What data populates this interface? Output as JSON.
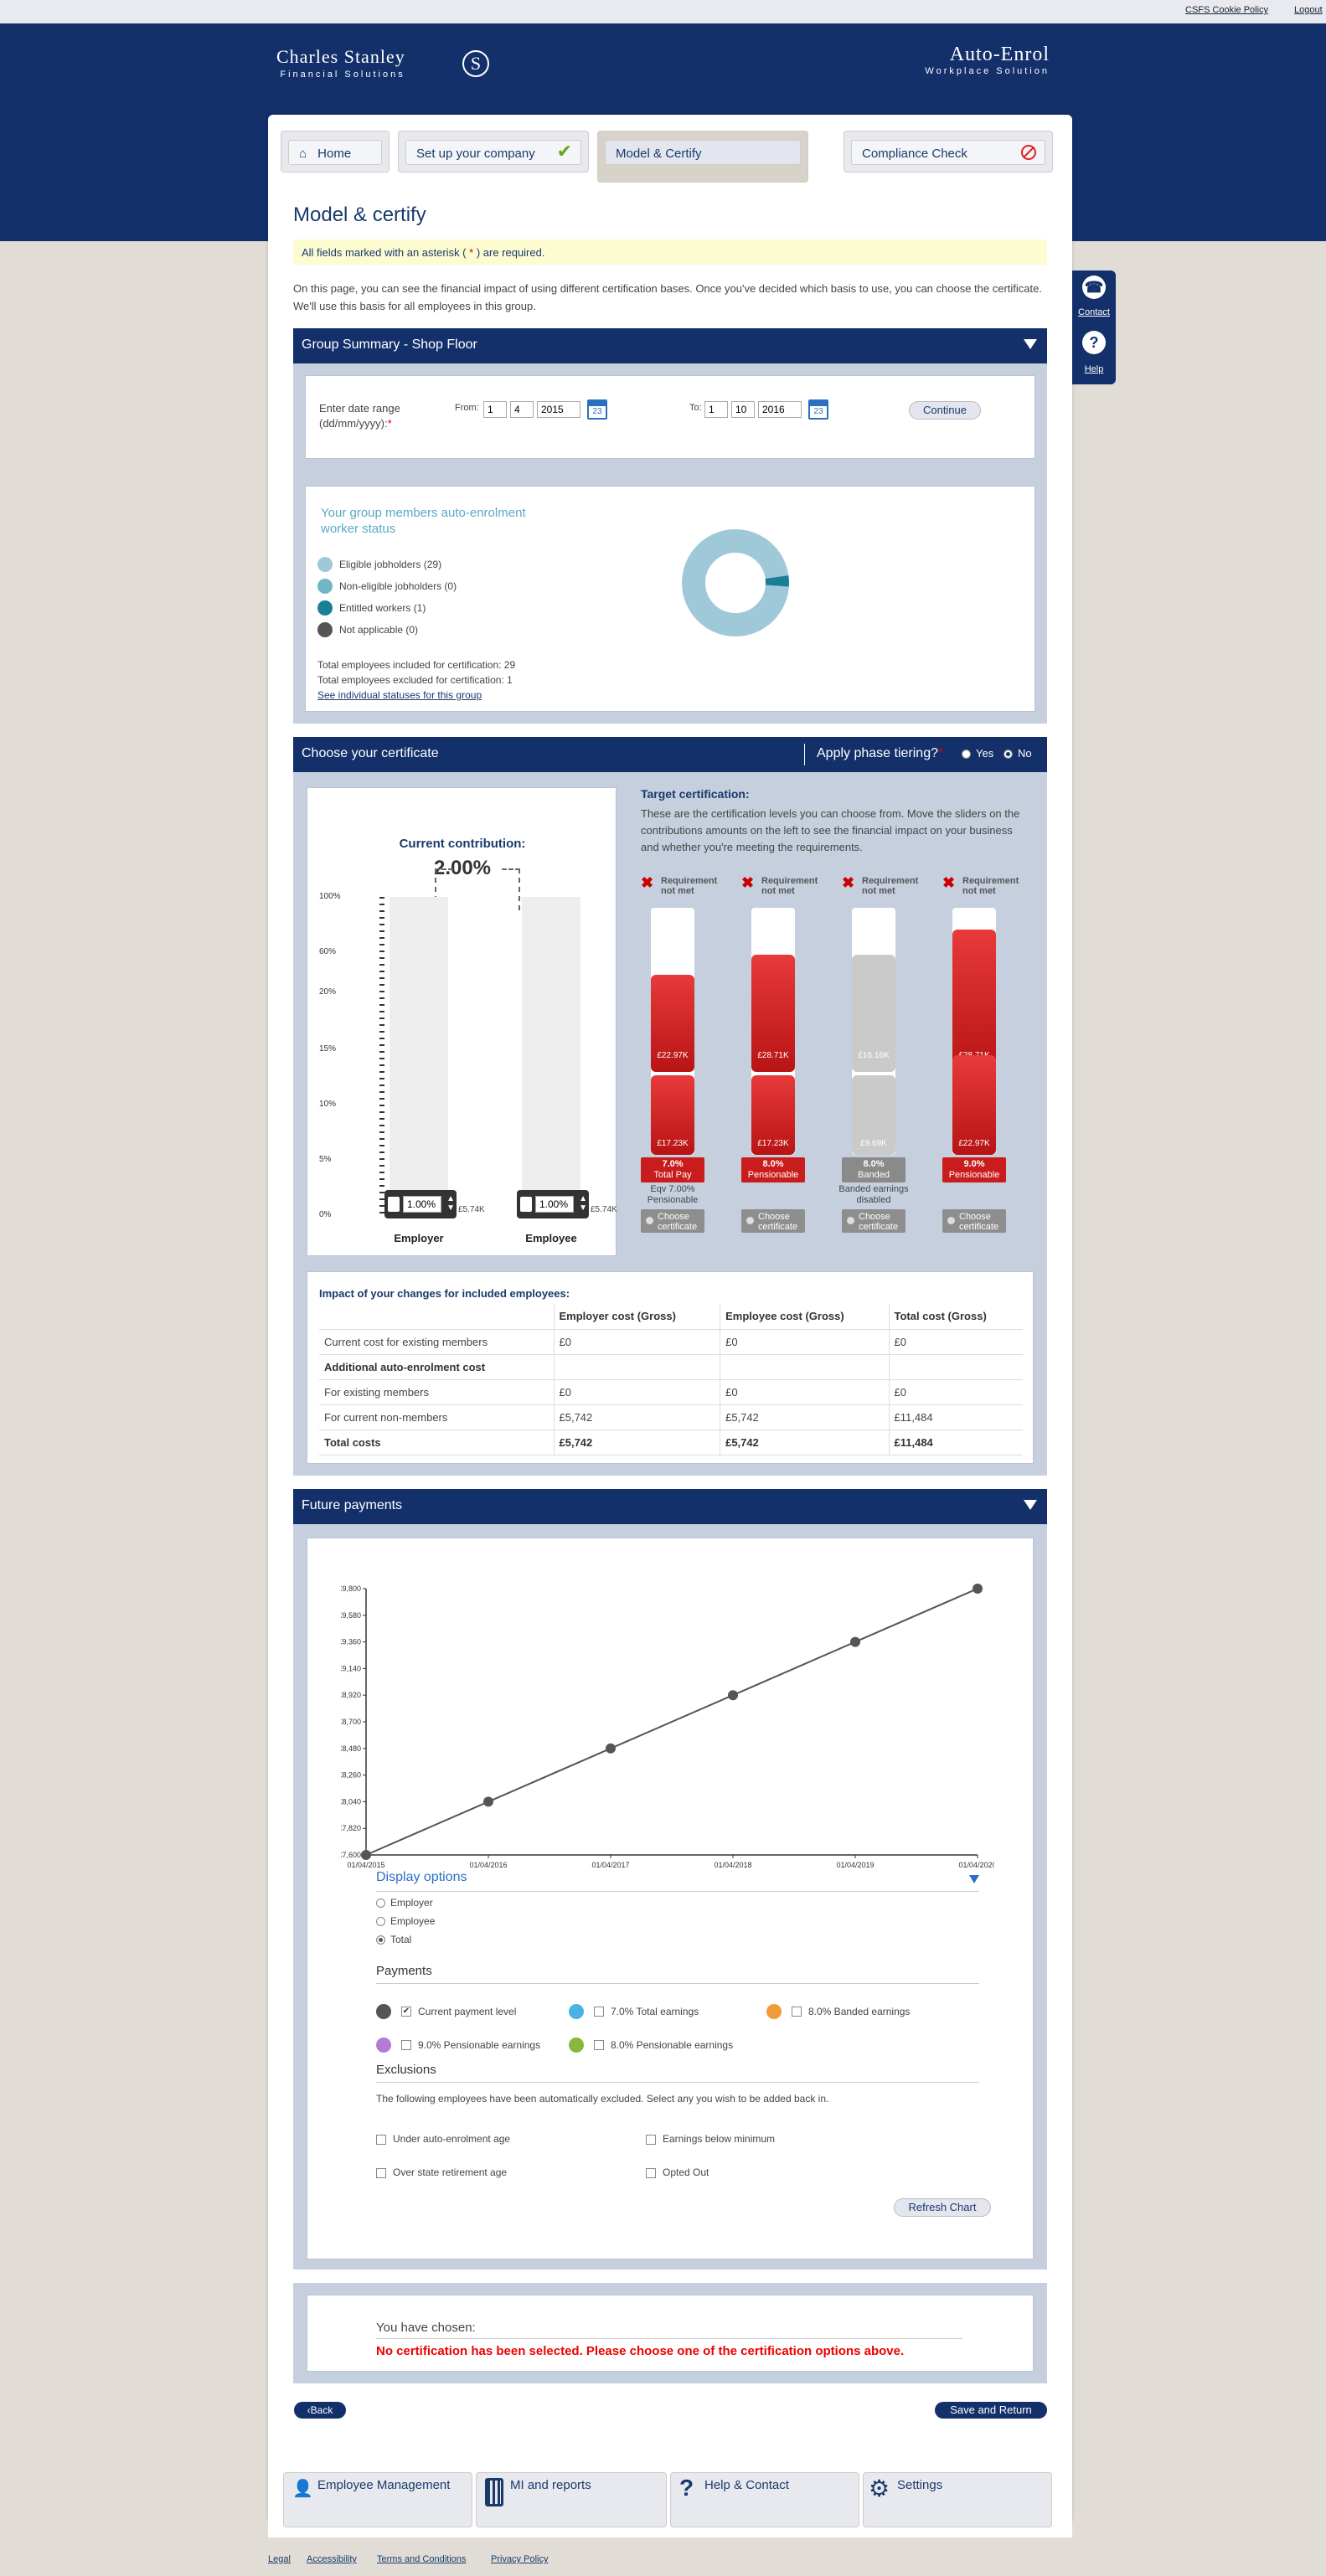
{
  "topbar": {
    "cookie": "CSFS Cookie Policy",
    "logout": "Logout"
  },
  "brand": {
    "left_line1": "Charles Stanley",
    "left_line2": "Financial Solutions",
    "left_mark": "S",
    "right_line1": "Auto-Enrol",
    "right_line2": "Workplace Solution"
  },
  "tabs": [
    {
      "label": "Home"
    },
    {
      "label": "Set up your company"
    },
    {
      "label": "Model & Certify"
    },
    {
      "label": "Compliance Check"
    }
  ],
  "page": {
    "title": "Model & certify",
    "required_note_pre": "All fields marked with an asterisk (",
    "required_note_ast": " * ",
    "required_note_post": ") are required.",
    "intro": "On this page, you can see the financial impact of using different certification bases. Once you've decided which basis to use, you can choose the certificate. We'll use this basis for all employees in this group."
  },
  "side": {
    "contact": "Contact",
    "help": "Help"
  },
  "group": {
    "bar_title": "Group Summary - Shop Floor",
    "date_label": "Enter date range (dd/mm/yyyy):",
    "date_ast": "*",
    "from_label": "From:",
    "from": {
      "d": "1",
      "m": "4",
      "y": "2015"
    },
    "to_label": "To:",
    "to": {
      "d": "1",
      "m": "10",
      "y": "2016"
    },
    "continue": "Continue",
    "status_title": "Your group members auto-enrolment worker status",
    "legend": [
      {
        "label": "Eligible jobholders (29)",
        "color": "#9fc9d8"
      },
      {
        "label": "Non-eligible jobholders (0)",
        "color": "#6fb6c9"
      },
      {
        "label": "Entitled workers (1)",
        "color": "#1a7e97"
      },
      {
        "label": "Not applicable (0)",
        "color": "#555555"
      }
    ],
    "included": "Total employees included for certification: 29",
    "excluded": "Total employees excluded for certification: 1",
    "see_link": "See individual statuses for this group",
    "donut": {
      "eligible": 29,
      "entitled": 1
    }
  },
  "certificate": {
    "bar_title": "Choose your certificate",
    "phase_label": "Apply phase tiering?",
    "phase_ast": "*",
    "yes": "Yes",
    "no": "No",
    "current_title": "Current contribution:",
    "current_value": "2.00%",
    "scale": [
      "100%",
      "60%",
      "20%",
      "15%",
      "10%",
      "5%",
      "0%"
    ],
    "employer": {
      "label": "Employer",
      "value": "1.00%",
      "amount": "£5.74K"
    },
    "employee": {
      "label": "Employee",
      "value": "1.00%",
      "amount": "£5.74K"
    },
    "target_title": "Target certification:",
    "target_text": "These are the certification levels you can choose from. Move the sliders on the contributions amounts on the left to see the financial impact on your business and whether you're meeting the requirements.",
    "options": [
      {
        "req": "Requirement not met",
        "top": "£22.97K",
        "bottom": "£17.23K",
        "pct": "7.0%",
        "name": "Total Pay",
        "note": "Eqv 7.00% Pensionable",
        "choose": "Choose certificate",
        "grey": false
      },
      {
        "req": "Requirement not met",
        "top": "£28.71K",
        "bottom": "£17.23K",
        "pct": "8.0%",
        "name": "Pensionable",
        "note": "",
        "choose": "Choose certificate",
        "grey": false
      },
      {
        "req": "Requirement not met",
        "top": "£16.16K",
        "bottom": "£9.69K",
        "pct": "8.0%",
        "name": "Banded",
        "note": "Banded earnings disabled",
        "choose": "Choose certificate",
        "grey": true
      },
      {
        "req": "Requirement not met",
        "top": "£28.71K",
        "bottom": "£22.97K",
        "pct": "9.0%",
        "name": "Pensionable",
        "note": "",
        "choose": "Choose certificate",
        "grey": false
      }
    ]
  },
  "impact": {
    "title": "Impact of your changes for included employees:",
    "headers": [
      "",
      "Employer cost (Gross)",
      "Employee cost (Gross)",
      "Total cost (Gross)"
    ],
    "rows": [
      [
        "Current cost for existing members",
        "£0",
        "£0",
        "£0"
      ],
      [
        "Additional auto-enrolment cost",
        "",
        "",
        ""
      ],
      [
        "For existing members",
        "£0",
        "£0",
        "£0"
      ],
      [
        "For current non-members",
        "£5,742",
        "£5,742",
        "£11,484"
      ],
      [
        "Total costs",
        "£5,742",
        "£5,742",
        "£11,484"
      ]
    ]
  },
  "future": {
    "bar_title": "Future payments",
    "display_title": "Display options",
    "display_opts": [
      "Employer",
      "Employee",
      "Total"
    ],
    "payments_title": "Payments",
    "payments": [
      {
        "label": "Current payment level",
        "color": "#555555",
        "checked": true
      },
      {
        "label": "7.0% Total earnings",
        "color": "#4ab3e6",
        "checked": false
      },
      {
        "label": "8.0% Banded earnings",
        "color": "#f39a3b",
        "checked": false
      },
      {
        "label": "9.0% Pensionable earnings",
        "color": "#b57ad6",
        "checked": false
      },
      {
        "label": "8.0% Pensionable earnings",
        "color": "#86b83b",
        "checked": false
      }
    ],
    "exclusions_title": "Exclusions",
    "exclusions_text": "The following employees have been automatically excluded. Select any you wish to be added back in.",
    "exclusions": [
      "Under auto-enrolment age",
      "Earnings below minimum",
      "Over state retirement age",
      "Opted Out"
    ],
    "refresh": "Refresh Chart"
  },
  "chart_data": {
    "type": "line",
    "x": [
      "01/04/2015",
      "01/04/2016",
      "01/04/2017",
      "01/04/2018",
      "01/04/2019",
      "01/04/2020"
    ],
    "series": [
      {
        "values": [
          7600,
          8040,
          8480,
          8920,
          9360,
          9800
        ]
      }
    ],
    "yticks": [
      "£7,600",
      "£7,820",
      "£8,040",
      "£8,260",
      "£8,480",
      "£8,700",
      "£8,920",
      "£9,140",
      "£9,360",
      "£9,580",
      "£9,800"
    ],
    "ylim": [
      7600,
      9800
    ],
    "color": "#555555"
  },
  "chosen": {
    "label": "You have chosen:",
    "message": "No certification has been selected. Please choose one of the certification options above."
  },
  "nav": {
    "back": "Back",
    "save": "Save and Return"
  },
  "footer": [
    {
      "label": "Employee Management"
    },
    {
      "label": "MI and reports"
    },
    {
      "label": "Help & Contact"
    },
    {
      "label": "Settings"
    }
  ],
  "legal": [
    "Legal",
    "Accessibility",
    "Terms and Conditions",
    "Privacy Policy"
  ],
  "colors": {
    "navy": "#13306b",
    "panel": "#c5cfdd",
    "red": "#c91c1c"
  }
}
